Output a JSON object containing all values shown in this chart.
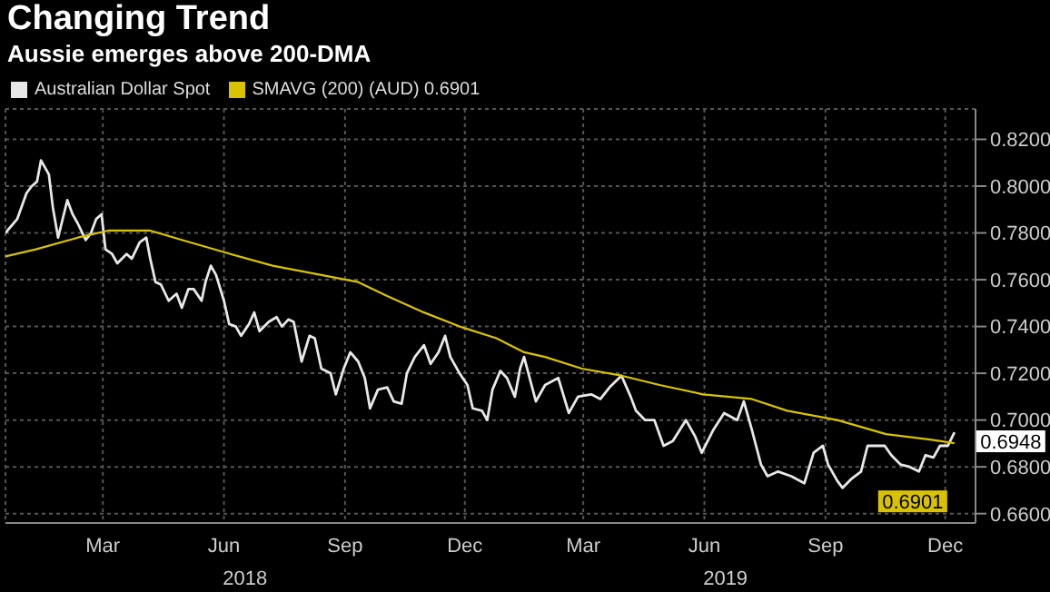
{
  "chart_data": {
    "type": "line",
    "title": "Changing Trend",
    "subtitle": "Aussie emerges above 200-DMA",
    "series": [
      {
        "name": "Australian Dollar Spot",
        "color": "#e8e8e8",
        "x": [
          "2018-01-01",
          "2018-01-10",
          "2018-01-17",
          "2018-01-21",
          "2018-01-25",
          "2018-01-28",
          "2018-02-03",
          "2018-02-06",
          "2018-02-10",
          "2018-02-17",
          "2018-02-21",
          "2018-02-25",
          "2018-03-03",
          "2018-03-07",
          "2018-03-11",
          "2018-03-15",
          "2018-03-18",
          "2018-03-23",
          "2018-03-27",
          "2018-04-03",
          "2018-04-07",
          "2018-04-13",
          "2018-04-18",
          "2018-04-21",
          "2018-04-25",
          "2018-04-29",
          "2018-05-05",
          "2018-05-11",
          "2018-05-15",
          "2018-05-20",
          "2018-05-24",
          "2018-05-30",
          "2018-06-02",
          "2018-06-06",
          "2018-06-10",
          "2018-06-16",
          "2018-06-20",
          "2018-06-25",
          "2018-06-29",
          "2018-07-05",
          "2018-07-09",
          "2018-07-13",
          "2018-07-20",
          "2018-07-26",
          "2018-07-30",
          "2018-08-04",
          "2018-08-08",
          "2018-08-14",
          "2018-08-20",
          "2018-08-24",
          "2018-08-29",
          "2018-09-05",
          "2018-09-09",
          "2018-09-15",
          "2018-09-20",
          "2018-09-26",
          "2018-10-01",
          "2018-10-05",
          "2018-10-11",
          "2018-10-18",
          "2018-10-23",
          "2018-10-29",
          "2018-11-02",
          "2018-11-08",
          "2018-11-15",
          "2018-11-20",
          "2018-11-26",
          "2018-12-01",
          "2018-12-05",
          "2018-12-12",
          "2018-12-18",
          "2018-12-22",
          "2018-12-29",
          "2019-01-02",
          "2019-01-06",
          "2019-01-12",
          "2019-01-17",
          "2019-01-23",
          "2019-01-27",
          "2019-01-30",
          "2019-02-08",
          "2019-02-15",
          "2019-02-25",
          "2019-03-05",
          "2019-03-12",
          "2019-03-22",
          "2019-03-29",
          "2019-04-05",
          "2019-04-14",
          "2019-04-21",
          "2019-04-25",
          "2019-05-02",
          "2019-05-09",
          "2019-05-16",
          "2019-05-23",
          "2019-06-02",
          "2019-06-09",
          "2019-06-14",
          "2019-06-23",
          "2019-07-01",
          "2019-07-11",
          "2019-07-16",
          "2019-07-22",
          "2019-07-29",
          "2019-08-03",
          "2019-08-11",
          "2019-08-21",
          "2019-08-31",
          "2019-09-07",
          "2019-09-14",
          "2019-09-18",
          "2019-09-25",
          "2019-09-29",
          "2019-10-06",
          "2019-10-13",
          "2019-10-18",
          "2019-10-25",
          "2019-10-31",
          "2019-11-05",
          "2019-11-12",
          "2019-11-19",
          "2019-11-26",
          "2019-12-01",
          "2019-12-07",
          "2019-12-12",
          "2019-12-18",
          "2019-12-23"
        ],
        "values": [
          0.78,
          0.786,
          0.797,
          0.8,
          0.802,
          0.811,
          0.805,
          0.791,
          0.778,
          0.794,
          0.788,
          0.784,
          0.777,
          0.78,
          0.786,
          0.788,
          0.773,
          0.771,
          0.767,
          0.771,
          0.769,
          0.776,
          0.778,
          0.769,
          0.759,
          0.758,
          0.751,
          0.754,
          0.748,
          0.756,
          0.756,
          0.751,
          0.759,
          0.766,
          0.762,
          0.751,
          0.741,
          0.74,
          0.736,
          0.741,
          0.746,
          0.738,
          0.742,
          0.744,
          0.74,
          0.743,
          0.742,
          0.725,
          0.736,
          0.735,
          0.722,
          0.72,
          0.711,
          0.722,
          0.729,
          0.725,
          0.718,
          0.705,
          0.713,
          0.714,
          0.708,
          0.707,
          0.72,
          0.727,
          0.732,
          0.724,
          0.729,
          0.736,
          0.727,
          0.72,
          0.715,
          0.705,
          0.704,
          0.7,
          0.713,
          0.721,
          0.718,
          0.71,
          0.722,
          0.727,
          0.708,
          0.715,
          0.718,
          0.703,
          0.71,
          0.711,
          0.709,
          0.714,
          0.719,
          0.71,
          0.704,
          0.7,
          0.7,
          0.689,
          0.691,
          0.7,
          0.693,
          0.686,
          0.696,
          0.703,
          0.7,
          0.708,
          0.696,
          0.681,
          0.676,
          0.678,
          0.676,
          0.673,
          0.686,
          0.689,
          0.681,
          0.674,
          0.671,
          0.675,
          0.678,
          0.689,
          0.689,
          0.689,
          0.685,
          0.681,
          0.68,
          0.678,
          0.685,
          0.684,
          0.689,
          0.689,
          0.6948
        ]
      },
      {
        "name": "SMAVG (200) (AUD) 0.6901",
        "color": "#d9c300",
        "x": [
          "2018-01-01",
          "2018-01-24",
          "2018-02-25",
          "2018-03-20",
          "2018-04-21",
          "2018-05-15",
          "2018-06-21",
          "2018-07-23",
          "2018-08-29",
          "2018-09-26",
          "2018-10-18",
          "2018-11-15",
          "2018-12-12",
          "2019-01-09",
          "2019-01-30",
          "2019-02-15",
          "2019-03-15",
          "2019-04-14",
          "2019-05-13",
          "2019-06-15",
          "2019-07-22",
          "2019-08-18",
          "2019-09-25",
          "2019-11-01",
          "2019-12-07",
          "2019-12-23"
        ],
        "values": [
          0.77,
          0.773,
          0.778,
          0.781,
          0.781,
          0.777,
          0.771,
          0.766,
          0.762,
          0.759,
          0.753,
          0.746,
          0.74,
          0.735,
          0.729,
          0.727,
          0.722,
          0.719,
          0.715,
          0.711,
          0.709,
          0.704,
          0.7,
          0.694,
          0.6915,
          0.6901
        ]
      }
    ],
    "xlim": [
      "2018-01-01",
      "2020-01-08"
    ],
    "xticks": [
      {
        "value": "2018-03-16",
        "label": "Mar"
      },
      {
        "value": "2018-06-16",
        "label": "Jun"
      },
      {
        "value": "2018-09-16",
        "label": "Sep"
      },
      {
        "value": "2018-12-16",
        "label": "Dec"
      },
      {
        "value": "2019-03-16",
        "label": "Mar"
      },
      {
        "value": "2019-06-16",
        "label": "Jun"
      },
      {
        "value": "2019-09-16",
        "label": "Sep"
      },
      {
        "value": "2019-12-16",
        "label": "Dec"
      }
    ],
    "x2lim": [
      "2018-01-01",
      "2020-01-08"
    ],
    "x2ticks": [
      {
        "value": "2018-07-02",
        "label": "2018"
      },
      {
        "value": "2019-07-02",
        "label": "2019"
      }
    ],
    "ylim": [
      0.656,
      0.833
    ],
    "yticks": [
      {
        "value": 0.66,
        "label": "0.6600"
      },
      {
        "value": 0.68,
        "label": "0.6800"
      },
      {
        "value": 0.7,
        "label": "0.7000"
      },
      {
        "value": 0.72,
        "label": "0.7200"
      },
      {
        "value": 0.74,
        "label": "0.7400"
      },
      {
        "value": 0.76,
        "label": "0.7600"
      },
      {
        "value": 0.78,
        "label": "0.7800"
      },
      {
        "value": 0.8,
        "label": "0.8000"
      },
      {
        "value": 0.82,
        "label": "0.8200"
      }
    ],
    "annotations": [
      {
        "text": "0.6948",
        "x": "2019-12-23",
        "y": 0.6948
      },
      {
        "text": "0.6901",
        "x": "2019-12-23",
        "y": 0.6901
      }
    ],
    "grid": true,
    "legend": "top left",
    "marker": "none",
    "line_style": "solid"
  }
}
